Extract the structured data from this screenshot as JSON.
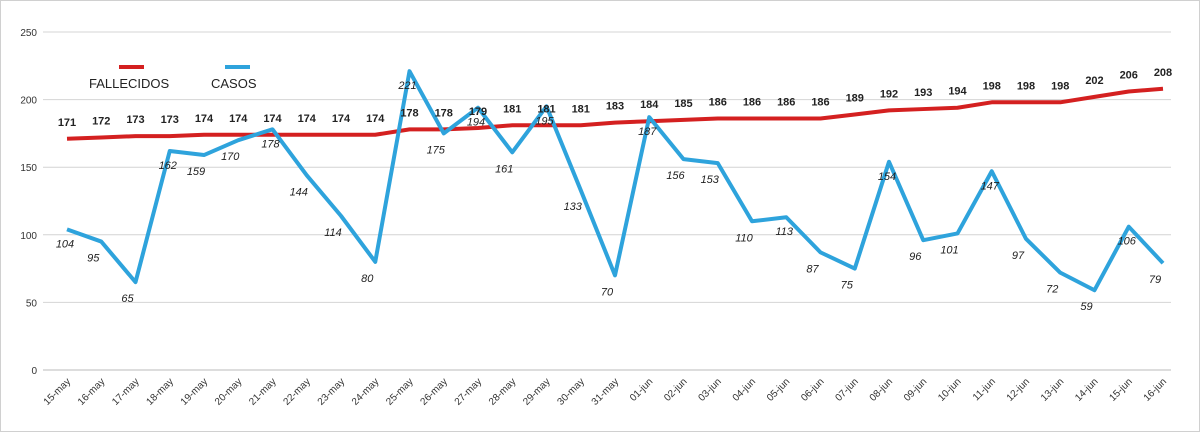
{
  "chart_data": {
    "type": "line",
    "categories": [
      "15-may",
      "16-may",
      "17-may",
      "18-may",
      "19-may",
      "20-may",
      "21-may",
      "22-may",
      "23-may",
      "24-may",
      "25-may",
      "26-may",
      "27-may",
      "28-may",
      "29-may",
      "30-may",
      "31-may",
      "01-jun",
      "02-jun",
      "03-jun",
      "04-jun",
      "05-jun",
      "06-jun",
      "07-jun",
      "08-jun",
      "09-jun",
      "10-jun",
      "11-jun",
      "12-jun",
      "13-jun",
      "14-jun",
      "15-jun",
      "16-jun"
    ],
    "series": [
      {
        "name": "FALLECIDOS",
        "color": "#d42020",
        "values": [
          171,
          172,
          173,
          173,
          174,
          174,
          174,
          174,
          174,
          174,
          178,
          178,
          179,
          181,
          181,
          181,
          183,
          184,
          185,
          186,
          186,
          186,
          186,
          189,
          192,
          193,
          194,
          198,
          198,
          198,
          202,
          206,
          208
        ]
      },
      {
        "name": "CASOS",
        "color": "#2ea3dc",
        "values": [
          104,
          95,
          65,
          162,
          159,
          170,
          178,
          144,
          114,
          80,
          221,
          175,
          194,
          161,
          195,
          133,
          70,
          187,
          156,
          153,
          110,
          113,
          87,
          75,
          154,
          96,
          101,
          147,
          97,
          72,
          59,
          106,
          79
        ]
      }
    ],
    "yticks": [
      0,
      50,
      100,
      150,
      200,
      250
    ],
    "ylim": [
      0,
      250
    ],
    "grid": true,
    "legend": "top-left",
    "title": "",
    "xlabel": "",
    "ylabel": ""
  }
}
